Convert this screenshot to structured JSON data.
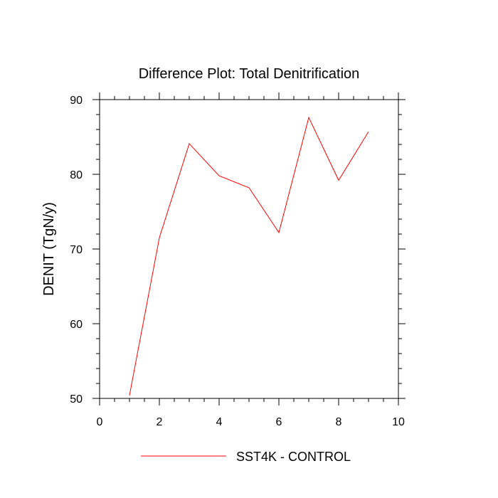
{
  "chart_data": {
    "type": "line",
    "title": "Difference Plot: Total Denitrification",
    "xlabel": "",
    "ylabel": "DENIT  (TgN/y)",
    "xlim": [
      0,
      10
    ],
    "ylim": [
      50,
      90
    ],
    "x_ticks": [
      0,
      2,
      4,
      6,
      8,
      10
    ],
    "y_ticks": [
      50,
      60,
      70,
      80,
      90
    ],
    "grid": false,
    "legend_position": "bottom-center",
    "series": [
      {
        "name": "SST4K - CONTROL",
        "color": "#ff0000",
        "x": [
          1,
          2,
          3,
          4,
          5,
          6,
          7,
          8,
          9
        ],
        "y": [
          50.4,
          71.5,
          84.1,
          79.8,
          78.2,
          72.2,
          87.6,
          79.2,
          85.7
        ]
      }
    ]
  }
}
